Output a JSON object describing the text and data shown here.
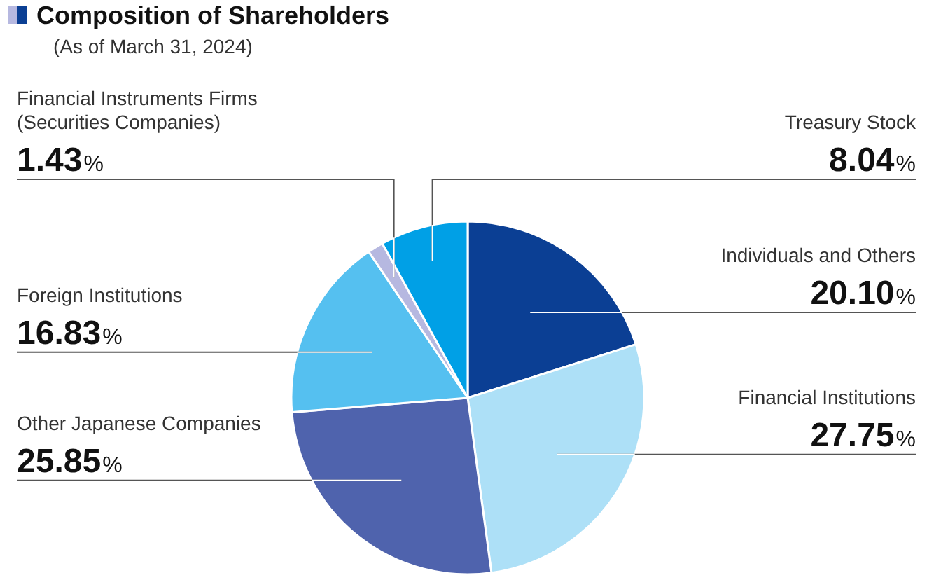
{
  "chart_data": {
    "type": "pie",
    "title": "Composition of Shareholders",
    "subtitle": "(As of March 31, 2024)",
    "categories": [
      "Individuals and Others",
      "Financial Institutions",
      "Other Japanese Companies",
      "Foreign Institutions",
      "Financial Instruments Firms (Securities Companies)",
      "Treasury Stock"
    ],
    "values": [
      20.1,
      27.75,
      25.85,
      16.83,
      1.43,
      8.04
    ],
    "colors": [
      "#0b3f94",
      "#ade0f7",
      "#4f63ad",
      "#55c0f0",
      "#b6b8e0",
      "#00a0e6"
    ],
    "value_labels": [
      "20.10%",
      "27.75%",
      "25.85%",
      "16.83%",
      "1.43%",
      "8.04%"
    ]
  }
}
